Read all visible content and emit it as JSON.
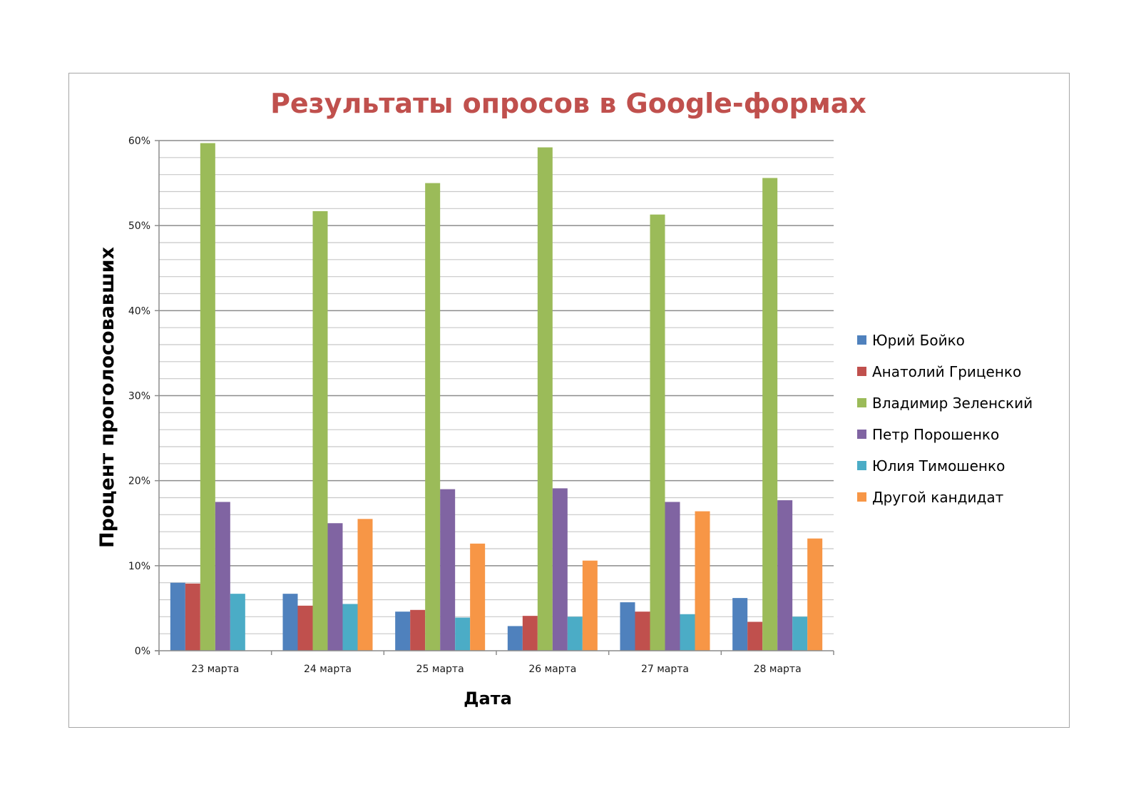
{
  "chart_data": {
    "type": "bar",
    "title": "Результаты опросов в Google-формах",
    "xlabel": "Дата",
    "ylabel": "Процент проголосовавших",
    "categories": [
      "23 марта",
      "24 марта",
      "25 марта",
      "26 марта",
      "27 марта",
      "28 марта"
    ],
    "ylim": [
      0,
      60
    ],
    "yticks": [
      0,
      10,
      20,
      30,
      40,
      50,
      60
    ],
    "ytick_labels": [
      "0%",
      "10%",
      "20%",
      "30%",
      "40%",
      "50%",
      "60%"
    ],
    "minor_grid_step": 2,
    "grid": true,
    "legend_position": "right",
    "series": [
      {
        "name": "Юрий Бойко",
        "color": "#4f81bd",
        "values": [
          8.0,
          6.7,
          4.6,
          2.9,
          5.7,
          6.2
        ]
      },
      {
        "name": "Анатолий Гриценко",
        "color": "#c0504d",
        "values": [
          7.9,
          5.3,
          4.8,
          4.1,
          4.6,
          3.4
        ]
      },
      {
        "name": "Владимир Зеленский",
        "color": "#9bbb59",
        "values": [
          59.7,
          51.7,
          55.0,
          59.2,
          51.3,
          55.6
        ]
      },
      {
        "name": "Петр Порошенко",
        "color": "#8064a2",
        "values": [
          17.5,
          15.0,
          19.0,
          19.1,
          17.5,
          17.7
        ]
      },
      {
        "name": "Юлия Тимошенко",
        "color": "#4bacc6",
        "values": [
          6.7,
          5.5,
          3.9,
          4.0,
          4.3,
          4.0
        ]
      },
      {
        "name": "Другой кандидат",
        "color": "#f79646",
        "values": [
          null,
          15.5,
          12.6,
          10.6,
          16.4,
          13.2
        ]
      }
    ]
  }
}
